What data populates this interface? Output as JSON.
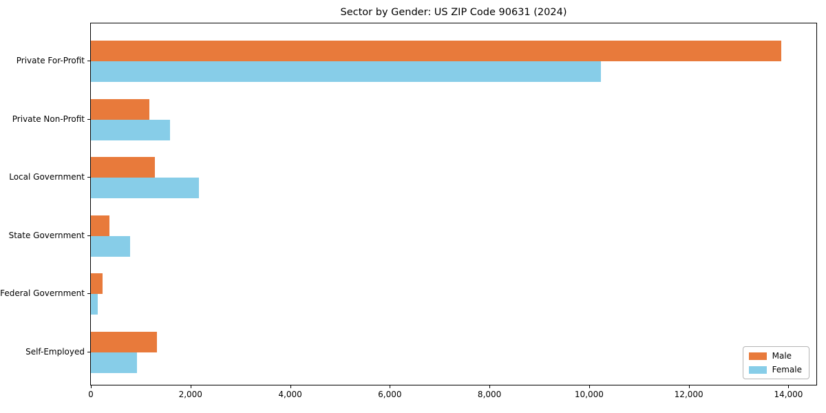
{
  "chart_data": {
    "type": "bar",
    "orientation": "horizontal",
    "title": "Sector by Gender: US ZIP Code 90631 (2024)",
    "categories": [
      "Private For-Profit",
      "Private Non-Profit",
      "Local Government",
      "State Government",
      "Federal Government",
      "Self-Employed"
    ],
    "series": [
      {
        "name": "Male",
        "color": "#E87A3B",
        "values": [
          13860,
          1170,
          1280,
          375,
          235,
          1325
        ]
      },
      {
        "name": "Female",
        "color": "#87CDE8",
        "values": [
          10235,
          1590,
          2165,
          785,
          140,
          925
        ]
      }
    ],
    "xlim": [
      0,
      14560
    ],
    "x_ticks": [
      0,
      2000,
      4000,
      6000,
      8000,
      10000,
      12000,
      14000
    ],
    "x_tick_labels": [
      "0",
      "2,000",
      "4,000",
      "6,000",
      "8,000",
      "10,000",
      "12,000",
      "14,000"
    ],
    "xlabel": "",
    "ylabel": "",
    "grid": false,
    "legend_position": "lower right"
  }
}
